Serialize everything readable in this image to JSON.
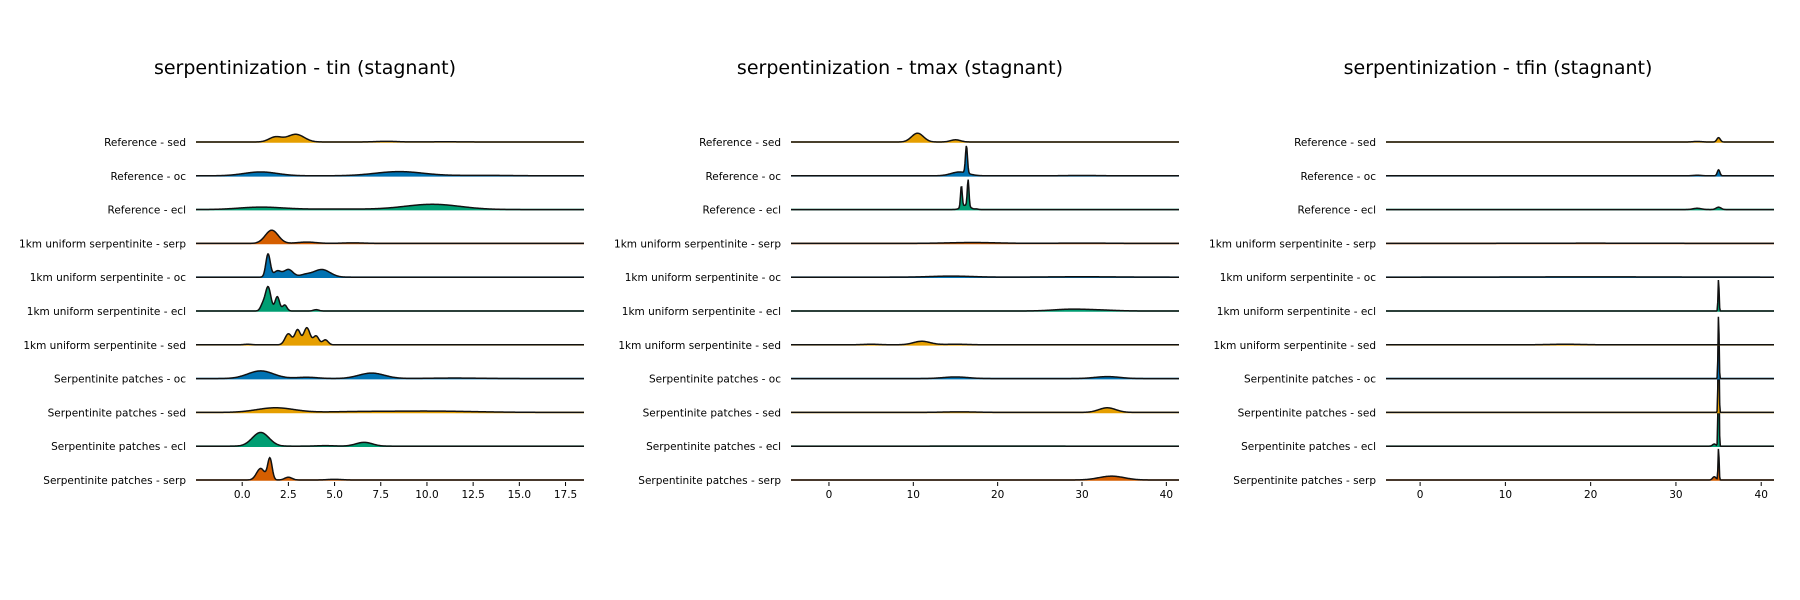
{
  "colors": {
    "oc": "#0072b2",
    "sed": "#e69f00",
    "ecl": "#009e73",
    "serp": "#d55e00",
    "outline": "#111111"
  },
  "chart_data": [
    {
      "type": "ridgeline",
      "title": "serpentinization - tin (stagnant)",
      "xlim": [
        -2.5,
        18.5
      ],
      "xticks": [
        0.0,
        2.5,
        5.0,
        7.5,
        10.0,
        12.5,
        15.0,
        17.5
      ],
      "xtick_labels": [
        "0.0",
        "2.5",
        "5.0",
        "7.5",
        "10.0",
        "12.5",
        "15.0",
        "17.5"
      ],
      "series": [
        {
          "name": "Reference - sed",
          "color_key": "sed",
          "peaks": [
            [
              1.8,
              0.35,
              0.45
            ],
            [
              2.9,
              0.45,
              0.7
            ],
            [
              7.8,
              0.6,
              0.06
            ],
            [
              11.0,
              1.0,
              0.02
            ]
          ]
        },
        {
          "name": "Reference - oc",
          "color_key": "oc",
          "peaks": [
            [
              1.0,
              0.9,
              0.35
            ],
            [
              8.5,
              1.3,
              0.38
            ],
            [
              13.0,
              1.5,
              0.04
            ]
          ]
        },
        {
          "name": "Reference - ecl",
          "color_key": "ecl",
          "peaks": [
            [
              1.0,
              1.2,
              0.22
            ],
            [
              10.3,
              1.5,
              0.48
            ],
            [
              5.0,
              2.0,
              0.05
            ]
          ]
        },
        {
          "name": "1km uniform serpentinite - serp",
          "color_key": "serp",
          "peaks": [
            [
              1.6,
              0.35,
              1.2
            ],
            [
              3.5,
              0.5,
              0.12
            ],
            [
              6.0,
              0.6,
              0.05
            ]
          ]
        },
        {
          "name": "1km uniform serpentinite - oc",
          "color_key": "oc",
          "peaks": [
            [
              1.4,
              0.12,
              2.1
            ],
            [
              2.5,
              0.25,
              0.7
            ],
            [
              1.9,
              0.2,
              0.55
            ],
            [
              4.3,
              0.45,
              0.7
            ],
            [
              3.4,
              0.3,
              0.2
            ]
          ]
        },
        {
          "name": "1km uniform serpentinite - ecl",
          "color_key": "ecl",
          "peaks": [
            [
              1.4,
              0.15,
              2.2
            ],
            [
              1.9,
              0.12,
              1.3
            ],
            [
              2.3,
              0.12,
              0.55
            ],
            [
              1.1,
              0.12,
              0.5
            ],
            [
              4.0,
              0.15,
              0.12
            ]
          ]
        },
        {
          "name": "1km uniform serpentinite - sed",
          "color_key": "sed",
          "peaks": [
            [
              2.5,
              0.18,
              1.0
            ],
            [
              3.0,
              0.15,
              1.35
            ],
            [
              3.5,
              0.17,
              1.55
            ],
            [
              4.0,
              0.15,
              0.8
            ],
            [
              4.5,
              0.15,
              0.45
            ],
            [
              0.3,
              0.2,
              0.05
            ]
          ]
        },
        {
          "name": "Serpentinite patches - oc",
          "color_key": "oc",
          "peaks": [
            [
              1.0,
              0.7,
              0.7
            ],
            [
              7.0,
              0.7,
              0.5
            ],
            [
              3.5,
              0.6,
              0.12
            ],
            [
              11.5,
              1.5,
              0.05
            ]
          ]
        },
        {
          "name": "Serpentinite patches - sed",
          "color_key": "sed",
          "peaks": [
            [
              1.8,
              1.0,
              0.42
            ],
            [
              10.0,
              2.5,
              0.12
            ],
            [
              6.0,
              1.5,
              0.05
            ]
          ]
        },
        {
          "name": "Serpentinite patches - ecl",
          "color_key": "ecl",
          "peaks": [
            [
              1.0,
              0.45,
              1.25
            ],
            [
              6.6,
              0.45,
              0.35
            ],
            [
              4.5,
              0.5,
              0.05
            ]
          ]
        },
        {
          "name": "Serpentinite patches - serp",
          "color_key": "serp",
          "peaks": [
            [
              1.0,
              0.22,
              1.05
            ],
            [
              1.5,
              0.12,
              1.95
            ],
            [
              2.5,
              0.2,
              0.25
            ],
            [
              5.0,
              0.4,
              0.06
            ]
          ]
        }
      ]
    },
    {
      "type": "ridgeline",
      "title": "serpentinization - tmax (stagnant)",
      "xlim": [
        -4.5,
        41.5
      ],
      "xticks": [
        0,
        10,
        20,
        30,
        40
      ],
      "xtick_labels": [
        "0",
        "10",
        "20",
        "30",
        "40"
      ],
      "series": [
        {
          "name": "Reference - sed",
          "color_key": "sed",
          "peaks": [
            [
              10.5,
              0.7,
              0.8
            ],
            [
              15.0,
              0.6,
              0.2
            ]
          ]
        },
        {
          "name": "Reference - oc",
          "color_key": "oc",
          "peaks": [
            [
              15.5,
              1.0,
              0.35
            ],
            [
              16.3,
              0.12,
              2.5
            ],
            [
              30.0,
              2.0,
              0.03
            ]
          ]
        },
        {
          "name": "Reference - ecl",
          "color_key": "ecl",
          "peaks": [
            [
              15.7,
              0.1,
              1.95
            ],
            [
              16.5,
              0.1,
              2.4
            ],
            [
              16.2,
              0.5,
              0.4
            ],
            [
              17.5,
              0.2,
              0.05
            ]
          ]
        },
        {
          "name": "1km uniform serpentinite - serp",
          "color_key": "serp",
          "peaks": [
            [
              17.0,
              3.0,
              0.08
            ],
            [
              30.0,
              3.0,
              0.03
            ]
          ]
        },
        {
          "name": "1km uniform serpentinite - oc",
          "color_key": "oc",
          "peaks": [
            [
              14.5,
              2.5,
              0.1
            ],
            [
              30.0,
              4.0,
              0.04
            ]
          ]
        },
        {
          "name": "1km uniform serpentinite - ecl",
          "color_key": "ecl",
          "peaks": [
            [
              28.5,
              2.0,
              0.15
            ],
            [
              32.0,
              2.0,
              0.08
            ]
          ]
        },
        {
          "name": "1km uniform serpentinite - sed",
          "color_key": "sed",
          "peaks": [
            [
              11.0,
              1.0,
              0.32
            ],
            [
              5.0,
              1.0,
              0.05
            ],
            [
              15.0,
              1.5,
              0.05
            ]
          ]
        },
        {
          "name": "Serpentinite patches - oc",
          "color_key": "oc",
          "peaks": [
            [
              15.0,
              1.5,
              0.15
            ],
            [
              33.0,
              1.5,
              0.18
            ]
          ]
        },
        {
          "name": "Serpentinite patches - sed",
          "color_key": "sed",
          "peaks": [
            [
              15.5,
              2.0,
              0.05
            ],
            [
              33.0,
              1.0,
              0.42
            ]
          ]
        },
        {
          "name": "Serpentinite patches - ecl",
          "color_key": "ecl",
          "peaks": [
            [
              20.0,
              5.0,
              0.005
            ]
          ]
        },
        {
          "name": "Serpentinite patches - serp",
          "color_key": "serp",
          "peaks": [
            [
              33.5,
              1.5,
              0.35
            ]
          ]
        }
      ]
    },
    {
      "type": "ridgeline",
      "title": "serpentinization - tfin (stagnant)",
      "xlim": [
        -4.0,
        41.5
      ],
      "xticks": [
        0,
        10,
        20,
        30,
        40
      ],
      "xtick_labels": [
        "0",
        "10",
        "20",
        "30",
        "40"
      ],
      "series": [
        {
          "name": "Reference - sed",
          "color_key": "sed",
          "peaks": [
            [
              35.0,
              0.2,
              0.4
            ],
            [
              32.5,
              0.5,
              0.05
            ]
          ]
        },
        {
          "name": "Reference - oc",
          "color_key": "oc",
          "peaks": [
            [
              35.0,
              0.15,
              0.55
            ],
            [
              32.5,
              0.5,
              0.05
            ]
          ]
        },
        {
          "name": "Reference - ecl",
          "color_key": "ecl",
          "peaks": [
            [
              35.0,
              0.3,
              0.22
            ],
            [
              32.5,
              0.5,
              0.12
            ]
          ]
        },
        {
          "name": "1km uniform serpentinite - serp",
          "color_key": "serp",
          "peaks": [
            [
              20.0,
              8.0,
              0.02
            ]
          ]
        },
        {
          "name": "1km uniform serpentinite - oc",
          "color_key": "oc",
          "peaks": [
            [
              20.0,
              8.0,
              0.03
            ]
          ]
        },
        {
          "name": "1km uniform serpentinite - ecl",
          "color_key": "ecl",
          "peaks": [
            [
              35.0,
              0.06,
              3.0
            ]
          ]
        },
        {
          "name": "1km uniform serpentinite - sed",
          "color_key": "sed",
          "peaks": [
            [
              17.0,
              2.0,
              0.05
            ]
          ]
        },
        {
          "name": "Serpentinite patches - oc",
          "color_key": "oc",
          "peaks": [
            [
              35.0,
              0.06,
              6.0
            ]
          ]
        },
        {
          "name": "Serpentinite patches - sed",
          "color_key": "sed",
          "peaks": [
            [
              35.0,
              0.06,
              8.0
            ]
          ]
        },
        {
          "name": "Serpentinite patches - ecl",
          "color_key": "ecl",
          "peaks": [
            [
              35.0,
              0.06,
              10.0
            ],
            [
              34.5,
              0.2,
              0.2
            ]
          ]
        },
        {
          "name": "Serpentinite patches - serp",
          "color_key": "serp",
          "peaks": [
            [
              35.0,
              0.06,
              3.0
            ],
            [
              34.5,
              0.2,
              0.3
            ]
          ]
        }
      ]
    }
  ]
}
